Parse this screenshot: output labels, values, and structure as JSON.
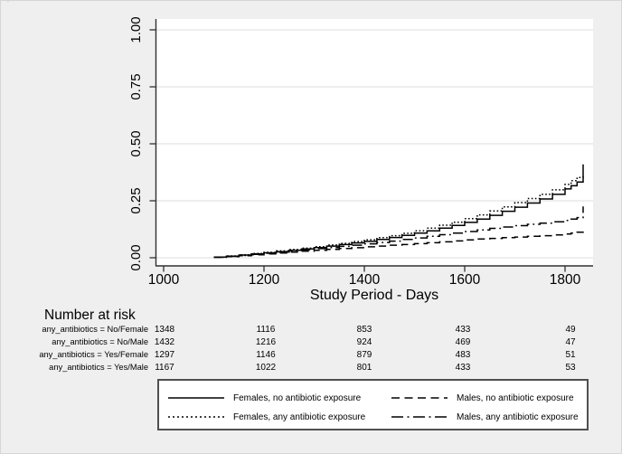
{
  "artifact_mark": "'",
  "chart": {
    "x_title": "Study Period - Days",
    "x_ticks": [
      "1000",
      "1200",
      "1400",
      "1600",
      "1800"
    ],
    "y_ticks": [
      "0.00",
      "0.25",
      "0.50",
      "0.75",
      "1.00"
    ]
  },
  "chart_data": {
    "type": "line",
    "subtype": "kaplan-meier-cumulative-incidence-steps",
    "title": "",
    "xlabel": "Study Period - Days",
    "ylabel": "",
    "xlim": [
      985,
      1855
    ],
    "ylim": [
      0,
      1.05
    ],
    "x_tick_values": [
      1000,
      1200,
      1400,
      1600,
      1800
    ],
    "y_tick_values": [
      0,
      0.25,
      0.5,
      0.75,
      1.0
    ],
    "grid": "horizontal",
    "legend_position": "bottom-box",
    "x": [
      1100,
      1125,
      1150,
      1175,
      1200,
      1225,
      1250,
      1275,
      1300,
      1325,
      1350,
      1375,
      1400,
      1425,
      1450,
      1475,
      1500,
      1525,
      1550,
      1575,
      1600,
      1625,
      1650,
      1675,
      1700,
      1725,
      1750,
      1775,
      1800,
      1812,
      1824,
      1836
    ],
    "series": [
      {
        "name": "Females, no antibiotic exposure",
        "line_style": "solid",
        "values": [
          0.003,
          0.007,
          0.012,
          0.017,
          0.022,
          0.027,
          0.033,
          0.039,
          0.045,
          0.051,
          0.058,
          0.065,
          0.072,
          0.08,
          0.089,
          0.098,
          0.108,
          0.118,
          0.13,
          0.142,
          0.155,
          0.17,
          0.186,
          0.204,
          0.222,
          0.24,
          0.258,
          0.278,
          0.302,
          0.316,
          0.332,
          0.41
        ]
      },
      {
        "name": "Females, any antibiotic exposure",
        "line_style": "dotted",
        "values": [
          0.003,
          0.008,
          0.013,
          0.019,
          0.024,
          0.03,
          0.036,
          0.042,
          0.049,
          0.056,
          0.063,
          0.071,
          0.079,
          0.088,
          0.097,
          0.107,
          0.118,
          0.13,
          0.143,
          0.156,
          0.172,
          0.188,
          0.205,
          0.223,
          0.242,
          0.26,
          0.278,
          0.298,
          0.322,
          0.338,
          0.352,
          0.36
        ]
      },
      {
        "name": "Males, no antibiotic exposure",
        "line_style": "dashed",
        "values": [
          0.002,
          0.005,
          0.009,
          0.013,
          0.017,
          0.021,
          0.025,
          0.029,
          0.033,
          0.037,
          0.041,
          0.044,
          0.048,
          0.051,
          0.055,
          0.058,
          0.062,
          0.066,
          0.07,
          0.074,
          0.078,
          0.082,
          0.085,
          0.088,
          0.091,
          0.094,
          0.097,
          0.1,
          0.104,
          0.108,
          0.112,
          0.118
        ]
      },
      {
        "name": "Males, any antibiotic exposure",
        "line_style": "dash-dot",
        "values": [
          0.002,
          0.006,
          0.01,
          0.015,
          0.02,
          0.025,
          0.03,
          0.035,
          0.04,
          0.045,
          0.05,
          0.055,
          0.061,
          0.067,
          0.073,
          0.08,
          0.087,
          0.094,
          0.101,
          0.108,
          0.115,
          0.122,
          0.129,
          0.135,
          0.141,
          0.147,
          0.152,
          0.158,
          0.164,
          0.17,
          0.176,
          0.225
        ]
      }
    ]
  },
  "risk_table": {
    "title": "Number at risk",
    "rows": [
      {
        "label": "any_antibiotics = No/Female",
        "values": [
          "1348",
          "1116",
          "853",
          "433",
          "49"
        ]
      },
      {
        "label": "any_antibiotics = No/Male",
        "values": [
          "1432",
          "1216",
          "924",
          "469",
          "47"
        ]
      },
      {
        "label": "any_antibiotics = Yes/Female",
        "values": [
          "1297",
          "1146",
          "879",
          "483",
          "51"
        ]
      },
      {
        "label": "any_antibiotics = Yes/Male",
        "values": [
          "1167",
          "1022",
          "801",
          "433",
          "53"
        ]
      }
    ]
  },
  "legend": {
    "items": [
      {
        "label": "Females, no antibiotic exposure",
        "line_style": "solid"
      },
      {
        "label": "Females, any antibiotic exposure",
        "line_style": "dotted"
      },
      {
        "label": "Males, no antibiotic exposure",
        "line_style": "dashed"
      },
      {
        "label": "Males, any antibiotic exposure",
        "line_style": "dash-dot"
      }
    ]
  },
  "colors": {
    "line": "#000000",
    "background": "#efeff0",
    "plot_background": "#ffffff",
    "grid": "#dcdcdc",
    "axis": "#303030"
  }
}
